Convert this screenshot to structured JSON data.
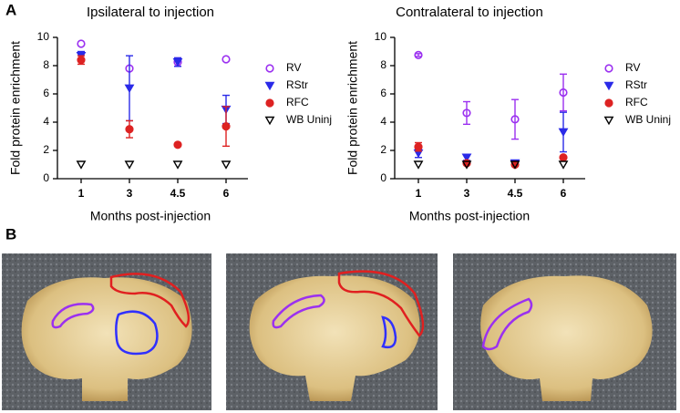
{
  "panel_labels": [
    "A",
    "B"
  ],
  "chart_data": [
    {
      "type": "scatter",
      "title": "Ipsilateral to injection",
      "x_label": "Months post-injection",
      "y_label": "Fold protein enrichment",
      "categories": [
        "1",
        "3",
        "4.5",
        "6"
      ],
      "ylim": [
        0,
        10
      ],
      "yticks": [
        0,
        2,
        4,
        6,
        8,
        10
      ],
      "legend": "right",
      "series": [
        {
          "name": "RV",
          "color": "#9b30f0",
          "marker": "circle",
          "filled": false,
          "values": [
            9.55,
            7.8,
            8.25,
            8.45
          ],
          "errors": [
            null,
            null,
            0.3,
            null
          ]
        },
        {
          "name": "RStr",
          "color": "#2a2ae8",
          "marker": "triangle-down",
          "filled": true,
          "values": [
            8.7,
            6.4,
            8.25,
            4.9
          ],
          "errors": [
            0.3,
            2.3,
            0.3,
            1.0
          ]
        },
        {
          "name": "RFC",
          "color": "#dd2222",
          "marker": "circle",
          "filled": true,
          "values": [
            8.4,
            3.5,
            2.4,
            3.7
          ],
          "errors": [
            0.3,
            0.6,
            null,
            1.4
          ]
        },
        {
          "name": "WB Uninj",
          "color": "#000000",
          "marker": "triangle-down",
          "filled": false,
          "values": [
            1.0,
            1.0,
            1.0,
            1.0
          ],
          "errors": [
            null,
            null,
            null,
            null
          ]
        }
      ]
    },
    {
      "type": "scatter",
      "title": "Contralateral to injection",
      "x_label": "Months post-injection",
      "y_label": "Fold protein enrichment",
      "categories": [
        "1",
        "3",
        "4.5",
        "6"
      ],
      "ylim": [
        0,
        10
      ],
      "yticks": [
        0,
        2,
        4,
        6,
        8,
        10
      ],
      "legend": "right",
      "series": [
        {
          "name": "RV",
          "color": "#9b30f0",
          "marker": "circle",
          "filled": false,
          "values": [
            8.75,
            4.65,
            4.2,
            6.1
          ],
          "errors": [
            0.1,
            0.8,
            1.4,
            1.3
          ]
        },
        {
          "name": "RStr",
          "color": "#2a2ae8",
          "marker": "triangle-down",
          "filled": true,
          "values": [
            1.8,
            1.5,
            1.1,
            3.3
          ],
          "errors": [
            0.3,
            0.2,
            null,
            1.4
          ]
        },
        {
          "name": "RFC",
          "color": "#dd2222",
          "marker": "circle",
          "filled": true,
          "values": [
            2.25,
            1.1,
            1.0,
            1.5
          ],
          "errors": [
            0.3,
            null,
            null,
            null
          ]
        },
        {
          "name": "WB Uninj",
          "color": "#000000",
          "marker": "triangle-down",
          "filled": false,
          "values": [
            1.0,
            1.0,
            1.0,
            1.0
          ],
          "errors": [
            null,
            null,
            null,
            null
          ]
        }
      ]
    }
  ]
}
